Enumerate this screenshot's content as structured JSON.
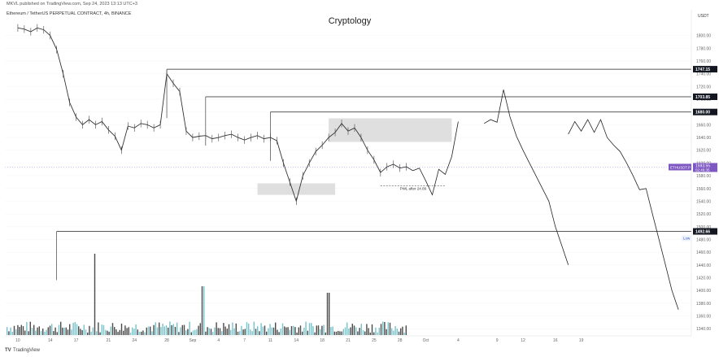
{
  "header": {
    "publish_line": "MKVL published on TradingView.com, Sep 24, 2023 13:13 UTC+3",
    "symbol_line": "Ethereum / TetherUS PERPETUAL CONTRACT, 4h, BINANCE",
    "currency": "USDT"
  },
  "footer": {
    "logo": "TV",
    "brand": "TradingView"
  },
  "chart_data": {
    "type": "line",
    "title": "Cryptology",
    "x_ticks": [
      "10",
      "14",
      "17",
      "21",
      "24",
      "28",
      "Sep",
      "4",
      "7",
      "11",
      "14",
      "18",
      "21",
      "25",
      "28",
      "Oct",
      "4",
      "9",
      "12",
      "16",
      "19"
    ],
    "y_ticks": [
      "1800.00",
      "1780.00",
      "1760.00",
      "1740.00",
      "1720.00",
      "1700.00",
      "1680.00",
      "1660.00",
      "1640.00",
      "1620.00",
      "1600.00",
      "1580.00",
      "1560.00",
      "1540.00",
      "1520.00",
      "1500.00",
      "1480.00",
      "1460.00",
      "1440.00",
      "1420.00",
      "1400.00",
      "1380.00",
      "1360.00",
      "1340.00"
    ],
    "ylim": [
      1330,
      1820
    ],
    "levels": [
      {
        "value": 1747.15,
        "label": "1747.15",
        "x_start": 17
      },
      {
        "value": 1703.85,
        "label": "1703.85",
        "x_start": 23
      },
      {
        "value": 1680.0,
        "label": "1680.00",
        "x_start": 33
      },
      {
        "value": 1492.66,
        "label": "1492.66",
        "x_start": 0
      }
    ],
    "current_price": {
      "symbol": "ETHUSDT.P",
      "value": "1593.55",
      "countdown": "02:46:35"
    },
    "low_label": "Low",
    "zones": [
      {
        "x0": 42,
        "x1": 61,
        "y_top": 1670,
        "y_bottom": 1633
      },
      {
        "x0": 31,
        "x1": 43,
        "y_top": 1568,
        "y_bottom": 1550
      }
    ],
    "pwl": {
      "label": "PWL after 24.09",
      "value": 1564
    },
    "price_path": [
      [
        -6,
        1812
      ],
      [
        -5,
        1810
      ],
      [
        -4,
        1806
      ],
      [
        -3,
        1812
      ],
      [
        -2,
        1809
      ],
      [
        -1,
        1800
      ],
      [
        0,
        1778
      ],
      [
        1,
        1740
      ],
      [
        2,
        1695
      ],
      [
        3,
        1672
      ],
      [
        4,
        1660
      ],
      [
        5,
        1668
      ],
      [
        6,
        1660
      ],
      [
        7,
        1665
      ],
      [
        8,
        1652
      ],
      [
        9,
        1642
      ],
      [
        10,
        1620
      ],
      [
        11,
        1658
      ],
      [
        12,
        1655
      ],
      [
        13,
        1662
      ],
      [
        14,
        1660
      ],
      [
        15,
        1655
      ],
      [
        16,
        1660
      ],
      [
        17,
        1740
      ],
      [
        18,
        1725
      ],
      [
        19,
        1712
      ],
      [
        20,
        1650
      ],
      [
        21,
        1640
      ],
      [
        22,
        1642
      ],
      [
        23,
        1643
      ],
      [
        24,
        1638
      ],
      [
        25,
        1640
      ],
      [
        26,
        1643
      ],
      [
        27,
        1645
      ],
      [
        28,
        1640
      ],
      [
        29,
        1636
      ],
      [
        30,
        1640
      ],
      [
        31,
        1643
      ],
      [
        32,
        1638
      ],
      [
        33,
        1640
      ],
      [
        34,
        1635
      ],
      [
        35,
        1600
      ],
      [
        36,
        1570
      ],
      [
        37,
        1540
      ],
      [
        38,
        1580
      ],
      [
        39,
        1600
      ],
      [
        40,
        1618
      ],
      [
        41,
        1628
      ],
      [
        42,
        1640
      ],
      [
        43,
        1648
      ],
      [
        44,
        1662
      ],
      [
        45,
        1650
      ],
      [
        46,
        1655
      ],
      [
        47,
        1640
      ],
      [
        48,
        1620
      ],
      [
        49,
        1605
      ],
      [
        50,
        1585
      ],
      [
        51,
        1594
      ],
      [
        52,
        1598
      ],
      [
        53,
        1592
      ],
      [
        54,
        1594
      ]
    ],
    "projection_a": [
      [
        54,
        1594
      ],
      [
        55,
        1588
      ],
      [
        56,
        1592
      ],
      [
        57,
        1572
      ],
      [
        58,
        1550
      ],
      [
        59,
        1590
      ],
      [
        60,
        1582
      ],
      [
        61,
        1610
      ],
      [
        62,
        1665
      ]
    ],
    "projection_b": [
      [
        66,
        1662
      ],
      [
        67,
        1668
      ],
      [
        68,
        1664
      ],
      [
        69,
        1715
      ],
      [
        70,
        1672
      ],
      [
        71,
        1642
      ],
      [
        72,
        1620
      ],
      [
        73,
        1600
      ],
      [
        74,
        1580
      ],
      [
        75,
        1560
      ],
      [
        76,
        1540
      ],
      [
        77,
        1500
      ],
      [
        78,
        1470
      ],
      [
        79,
        1440
      ]
    ],
    "projection_c": [
      [
        79,
        1645
      ],
      [
        80,
        1665
      ],
      [
        81,
        1650
      ],
      [
        82,
        1668
      ],
      [
        83,
        1648
      ],
      [
        84,
        1668
      ],
      [
        85,
        1640
      ],
      [
        86,
        1628
      ],
      [
        87,
        1618
      ],
      [
        88,
        1600
      ],
      [
        89,
        1580
      ],
      [
        90,
        1558
      ],
      [
        91,
        1560
      ],
      [
        92,
        1520
      ],
      [
        93,
        1480
      ],
      [
        94,
        1440
      ],
      [
        95,
        1400
      ],
      [
        96,
        1370
      ]
    ]
  }
}
